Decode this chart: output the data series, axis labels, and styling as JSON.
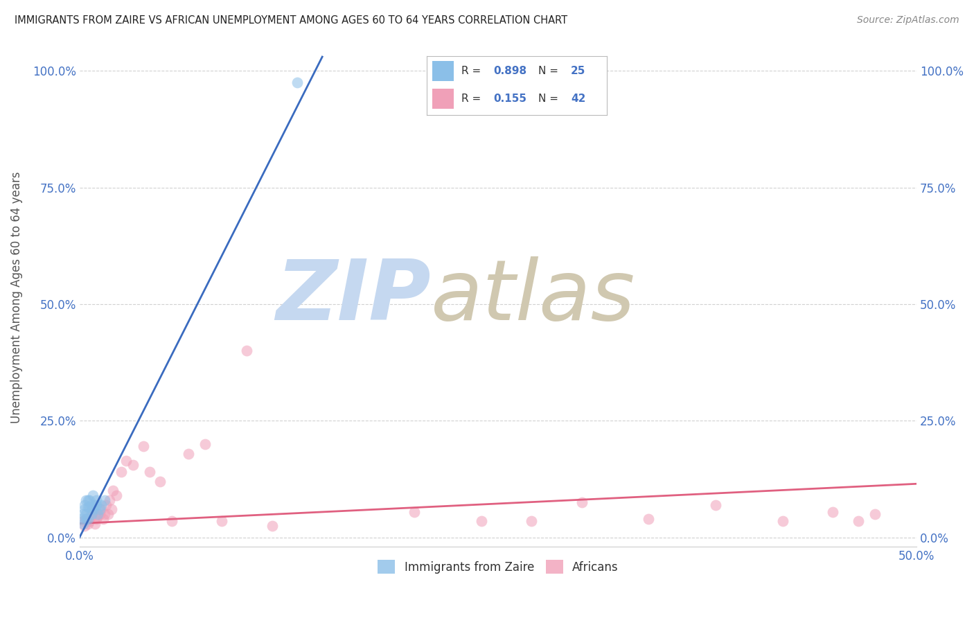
{
  "title": "IMMIGRANTS FROM ZAIRE VS AFRICAN UNEMPLOYMENT AMONG AGES 60 TO 64 YEARS CORRELATION CHART",
  "source": "Source: ZipAtlas.com",
  "ylabel": "Unemployment Among Ages 60 to 64 years",
  "xlim": [
    0,
    0.5
  ],
  "ylim": [
    -0.02,
    1.05
  ],
  "x_ticks": [
    0.0,
    0.5
  ],
  "x_tick_labels": [
    "0.0%",
    "50.0%"
  ],
  "y_ticks": [
    0.0,
    0.25,
    0.5,
    0.75,
    1.0
  ],
  "y_tick_labels": [
    "0.0%",
    "25.0%",
    "50.0%",
    "75.0%",
    "100.0%"
  ],
  "background_color": "#ffffff",
  "watermark_zip": "ZIP",
  "watermark_atlas": "atlas",
  "watermark_color_zip": "#c5d8f0",
  "watermark_color_atlas": "#d0c8b0",
  "series1_label": "Immigrants from Zaire",
  "series1_color": "#8bbfe8",
  "series1_line_color": "#3a6bbf",
  "series1_R": 0.898,
  "series1_N": 25,
  "series1_scatter_x": [
    0.001,
    0.002,
    0.002,
    0.003,
    0.003,
    0.004,
    0.004,
    0.004,
    0.005,
    0.005,
    0.005,
    0.006,
    0.006,
    0.007,
    0.007,
    0.008,
    0.008,
    0.009,
    0.01,
    0.01,
    0.011,
    0.012,
    0.013,
    0.015,
    0.13
  ],
  "series1_scatter_y": [
    0.04,
    0.03,
    0.05,
    0.06,
    0.07,
    0.04,
    0.05,
    0.08,
    0.04,
    0.065,
    0.08,
    0.065,
    0.08,
    0.05,
    0.07,
    0.06,
    0.09,
    0.07,
    0.07,
    0.08,
    0.05,
    0.06,
    0.07,
    0.08,
    0.975
  ],
  "series1_line_x": [
    0.0,
    0.145
  ],
  "series1_line_y": [
    0.0,
    1.03
  ],
  "series2_label": "Africans",
  "series2_color": "#f0a0b8",
  "series2_line_color": "#e06080",
  "series2_R": 0.155,
  "series2_N": 42,
  "series2_scatter_x": [
    0.002,
    0.003,
    0.004,
    0.005,
    0.006,
    0.007,
    0.008,
    0.009,
    0.01,
    0.011,
    0.012,
    0.013,
    0.014,
    0.015,
    0.016,
    0.017,
    0.018,
    0.019,
    0.02,
    0.022,
    0.025,
    0.028,
    0.032,
    0.038,
    0.042,
    0.048,
    0.055,
    0.065,
    0.075,
    0.085,
    0.1,
    0.115,
    0.2,
    0.24,
    0.27,
    0.3,
    0.34,
    0.38,
    0.42,
    0.45,
    0.465,
    0.475
  ],
  "series2_scatter_y": [
    0.035,
    0.025,
    0.04,
    0.03,
    0.035,
    0.045,
    0.055,
    0.03,
    0.04,
    0.045,
    0.05,
    0.06,
    0.04,
    0.05,
    0.07,
    0.05,
    0.08,
    0.06,
    0.1,
    0.09,
    0.14,
    0.165,
    0.155,
    0.195,
    0.14,
    0.12,
    0.035,
    0.18,
    0.2,
    0.035,
    0.4,
    0.025,
    0.055,
    0.035,
    0.035,
    0.075,
    0.04,
    0.07,
    0.035,
    0.055,
    0.035,
    0.05
  ],
  "series2_line_x": [
    0.0,
    0.5
  ],
  "series2_line_y": [
    0.03,
    0.115
  ],
  "scatter_size": 130,
  "scatter_alpha": 0.55,
  "line_width": 2.0
}
